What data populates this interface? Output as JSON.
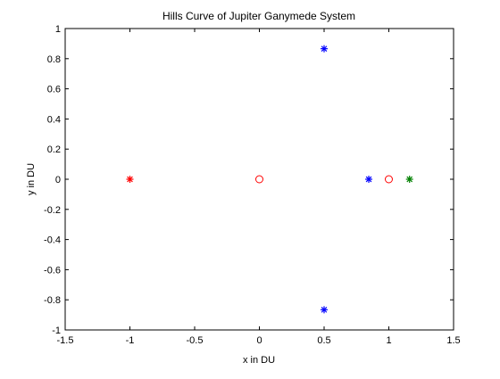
{
  "chart_data": {
    "type": "scatter",
    "title": "Hills Curve of Jupiter Ganymede System",
    "xlabel": "x in DU",
    "ylabel": "y in DU",
    "xlim": [
      -1.5,
      1.5
    ],
    "ylim": [
      -1,
      1
    ],
    "xticks": [
      "-1.5",
      "-1",
      "-0.5",
      "0",
      "0.5",
      "1",
      "1.5"
    ],
    "yticks": [
      "-1",
      "-0.8",
      "-0.6",
      "-0.4",
      "-0.2",
      "0",
      "0.2",
      "0.4",
      "0.6",
      "0.8",
      "1"
    ],
    "grid": false,
    "series": [
      {
        "marker": "star",
        "color": "#ff0000",
        "points": [
          [
            -1.0,
            0
          ]
        ]
      },
      {
        "marker": "circle",
        "color": "#ff0000",
        "points": [
          [
            -0.0001,
            0
          ],
          [
            0.9999,
            0
          ]
        ]
      },
      {
        "marker": "star",
        "color": "#0000ff",
        "points": [
          [
            0.5,
            0.866
          ],
          [
            0.5,
            -0.866
          ],
          [
            0.845,
            0
          ]
        ]
      },
      {
        "marker": "star",
        "color": "#008000",
        "points": [
          [
            1.16,
            0
          ]
        ]
      }
    ]
  }
}
